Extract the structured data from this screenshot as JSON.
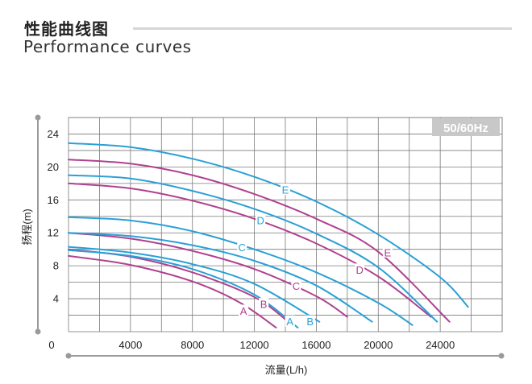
{
  "header": {
    "title_cn": "性能曲线图",
    "title_en": "Performance curves"
  },
  "chart_data": {
    "type": "line",
    "badge": "50/60Hz",
    "xlabel": "流量(L/h)",
    "ylabel": "扬程(m)",
    "origin_label": "0",
    "xlim": [
      0,
      28000
    ],
    "ylim": [
      0,
      26
    ],
    "x_ticks": [
      4000,
      8000,
      12000,
      16000,
      20000,
      24000
    ],
    "y_ticks": [
      4,
      8,
      12,
      16,
      20,
      24
    ],
    "grid": true,
    "series": [
      {
        "name": "A",
        "color": "#b0418f",
        "label_at": [
          11300,
          2.5
        ],
        "points": [
          [
            0,
            9.2
          ],
          [
            4000,
            8.1
          ],
          [
            8000,
            6.1
          ],
          [
            11000,
            3.6
          ],
          [
            13400,
            0.5
          ]
        ]
      },
      {
        "name": "B",
        "color": "#b0418f",
        "label_at": [
          12600,
          3.3
        ],
        "points": [
          [
            0,
            10
          ],
          [
            4000,
            9.1
          ],
          [
            8000,
            7.2
          ],
          [
            12000,
            4.2
          ],
          [
            14200,
            1.2
          ]
        ]
      },
      {
        "name": "A",
        "color": "#2aa0d6",
        "label_at": [
          14300,
          1.2
        ],
        "points": [
          [
            0,
            9.9
          ],
          [
            4000,
            9.2
          ],
          [
            8000,
            7.6
          ],
          [
            12000,
            4.5
          ],
          [
            14800,
            0.5
          ]
        ]
      },
      {
        "name": "B",
        "color": "#2aa0d6",
        "label_at": [
          15600,
          1.2
        ],
        "points": [
          [
            0,
            10.3
          ],
          [
            4000,
            9.6
          ],
          [
            8000,
            8.2
          ],
          [
            12000,
            5.8
          ],
          [
            16200,
            1.2
          ]
        ]
      },
      {
        "name": "C",
        "color": "#b0418f",
        "label_at": [
          14700,
          5.5
        ],
        "points": [
          [
            0,
            12
          ],
          [
            4000,
            11.3
          ],
          [
            8000,
            9.8
          ],
          [
            12000,
            7.6
          ],
          [
            16000,
            4.3
          ],
          [
            18000,
            1.8
          ]
        ]
      },
      {
        "name": "C",
        "color": "#2aa0d6",
        "label_at": [
          11200,
          10.2
        ],
        "points": [
          [
            0,
            12
          ],
          [
            4000,
            11.6
          ],
          [
            8000,
            10.5
          ],
          [
            12000,
            8.6
          ],
          [
            16000,
            5.6
          ],
          [
            19600,
            1.2
          ]
        ]
      },
      {
        "name": "C",
        "color": "#2aa0d6",
        "label_at": [
          11200,
          10.2
        ],
        "hidden_label": true,
        "points": [
          [
            0,
            13.9
          ],
          [
            4000,
            13.5
          ],
          [
            8000,
            12.2
          ],
          [
            12000,
            10
          ],
          [
            16000,
            7.2
          ],
          [
            20000,
            3.5
          ],
          [
            22200,
            0.8
          ]
        ]
      },
      {
        "name": "D",
        "color": "#b0418f",
        "label_at": [
          18800,
          7.5
        ],
        "points": [
          [
            0,
            18
          ],
          [
            4000,
            17.4
          ],
          [
            8000,
            15.9
          ],
          [
            12000,
            13.7
          ],
          [
            16000,
            10.7
          ],
          [
            20000,
            6.7
          ],
          [
            23400,
            1.8
          ]
        ]
      },
      {
        "name": "D",
        "color": "#2aa0d6",
        "label_at": [
          12400,
          13.5
        ],
        "points": [
          [
            0,
            19
          ],
          [
            4000,
            18.6
          ],
          [
            8000,
            17.1
          ],
          [
            12000,
            14.9
          ],
          [
            16000,
            11.9
          ],
          [
            20000,
            7.8
          ],
          [
            23800,
            1.2
          ]
        ]
      },
      {
        "name": "E",
        "color": "#b0418f",
        "label_at": [
          20600,
          9.6
        ],
        "points": [
          [
            0,
            20.9
          ],
          [
            4000,
            20.4
          ],
          [
            8000,
            19
          ],
          [
            12000,
            16.7
          ],
          [
            16000,
            13.7
          ],
          [
            20000,
            9.7
          ],
          [
            24600,
            1.2
          ]
        ]
      },
      {
        "name": "E",
        "color": "#2aa0d6",
        "label_at": [
          14000,
          17.2
        ],
        "points": [
          [
            0,
            22.9
          ],
          [
            4000,
            22.4
          ],
          [
            8000,
            21
          ],
          [
            12000,
            18.8
          ],
          [
            16000,
            15.8
          ],
          [
            20000,
            11.8
          ],
          [
            24000,
            6.6
          ],
          [
            25800,
            3
          ]
        ]
      }
    ]
  }
}
